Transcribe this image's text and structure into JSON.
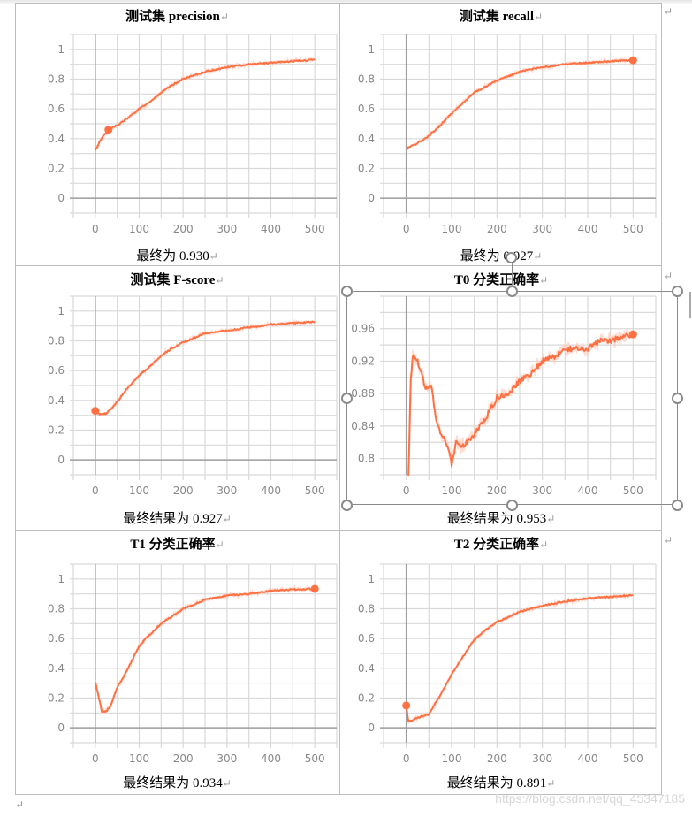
{
  "document": {
    "return_mark": "↵",
    "watermark": "https://blog.csdn.net/qq_45347185"
  },
  "cells": [
    {
      "title": "测试集 precision",
      "caption": "最终为 0.930"
    },
    {
      "title": "测试集 recall",
      "caption": "最终为 0.927"
    },
    {
      "title": "测试集 F-score",
      "caption": "最终结果为 0.927"
    },
    {
      "title": "T0 分类正确率",
      "caption": "最终结果为 0.953"
    },
    {
      "title": "T1 分类正确率",
      "caption": "最终结果为 0.934"
    },
    {
      "title": "T2 分类正确率",
      "caption": "最终结果为 0.891"
    }
  ],
  "colors": {
    "line": "#ff7043",
    "line_shadow": "#ffccbc",
    "grid": "#d9d9d9",
    "axis": "#9e9e9e",
    "border": "#bdbdbd"
  },
  "chart_data": [
    {
      "type": "line",
      "title": "测试集 precision",
      "xlabel": "",
      "ylabel": "",
      "xlim": [
        -50,
        550
      ],
      "ylim": [
        -0.1,
        1.1
      ],
      "xticks": [
        0,
        100,
        200,
        300,
        400,
        500
      ],
      "yticks": [
        0,
        0.2,
        0.4,
        0.6,
        0.8,
        1
      ],
      "grid": true,
      "x": [
        0,
        10,
        20,
        30,
        50,
        75,
        100,
        125,
        150,
        175,
        200,
        250,
        300,
        350,
        400,
        450,
        500
      ],
      "series": [
        {
          "name": "precision",
          "values": [
            0.32,
            0.38,
            0.43,
            0.46,
            0.49,
            0.54,
            0.6,
            0.65,
            0.71,
            0.76,
            0.8,
            0.85,
            0.88,
            0.9,
            0.91,
            0.92,
            0.93
          ]
        }
      ],
      "marker": {
        "x": 30,
        "y": 0.46
      },
      "final_value": 0.93
    },
    {
      "type": "line",
      "title": "测试集 recall",
      "xlim": [
        -50,
        550
      ],
      "ylim": [
        -0.1,
        1.1
      ],
      "xticks": [
        0,
        100,
        200,
        300,
        400,
        500
      ],
      "yticks": [
        0,
        0.2,
        0.4,
        0.6,
        0.8,
        1
      ],
      "grid": true,
      "x": [
        0,
        10,
        25,
        50,
        75,
        100,
        125,
        150,
        175,
        200,
        250,
        300,
        350,
        400,
        450,
        500
      ],
      "series": [
        {
          "name": "recall",
          "values": [
            0.33,
            0.35,
            0.37,
            0.42,
            0.49,
            0.57,
            0.64,
            0.71,
            0.75,
            0.79,
            0.85,
            0.88,
            0.9,
            0.91,
            0.92,
            0.927
          ]
        }
      ],
      "marker": {
        "x": 500,
        "y": 0.927
      },
      "final_value": 0.927
    },
    {
      "type": "line",
      "title": "测试集 F-score",
      "xlim": [
        -50,
        550
      ],
      "ylim": [
        -0.1,
        1.1
      ],
      "xticks": [
        0,
        100,
        200,
        300,
        400,
        500
      ],
      "yticks": [
        0,
        0.2,
        0.4,
        0.6,
        0.8,
        1
      ],
      "grid": true,
      "x": [
        0,
        10,
        25,
        50,
        75,
        100,
        125,
        150,
        175,
        200,
        250,
        300,
        350,
        400,
        450,
        500
      ],
      "series": [
        {
          "name": "F-score",
          "values": [
            0.33,
            0.31,
            0.31,
            0.39,
            0.49,
            0.57,
            0.63,
            0.7,
            0.75,
            0.79,
            0.85,
            0.87,
            0.89,
            0.91,
            0.92,
            0.927
          ]
        }
      ],
      "marker": {
        "x": 0,
        "y": 0.33
      },
      "final_value": 0.927
    },
    {
      "type": "line",
      "title": "T0 分类正确率",
      "xlim": [
        -50,
        550
      ],
      "ylim": [
        0.78,
        1.0
      ],
      "xticks": [
        0,
        100,
        200,
        300,
        400,
        500
      ],
      "yticks": [
        0.8,
        0.84,
        0.88,
        0.92,
        0.96
      ],
      "grid": true,
      "x": [
        5,
        10,
        15,
        25,
        35,
        45,
        55,
        65,
        75,
        85,
        95,
        100,
        110,
        125,
        150,
        175,
        200,
        225,
        250,
        275,
        300,
        325,
        350,
        375,
        400,
        425,
        450,
        475,
        500
      ],
      "series": [
        {
          "name": "T0 accuracy",
          "values": [
            0.78,
            0.9,
            0.93,
            0.92,
            0.9,
            0.885,
            0.89,
            0.85,
            0.83,
            0.825,
            0.81,
            0.79,
            0.82,
            0.815,
            0.83,
            0.85,
            0.875,
            0.88,
            0.895,
            0.905,
            0.92,
            0.925,
            0.935,
            0.935,
            0.935,
            0.945,
            0.945,
            0.95,
            0.953
          ]
        }
      ],
      "marker": {
        "x": 500,
        "y": 0.953
      },
      "final_value": 0.953
    },
    {
      "type": "line",
      "title": "T1 分类正确率",
      "xlim": [
        -50,
        550
      ],
      "ylim": [
        -0.1,
        1.1
      ],
      "xticks": [
        0,
        100,
        200,
        300,
        400,
        500
      ],
      "yticks": [
        0,
        0.2,
        0.4,
        0.6,
        0.8,
        1
      ],
      "grid": true,
      "x": [
        0,
        10,
        15,
        25,
        35,
        50,
        75,
        100,
        125,
        150,
        175,
        200,
        250,
        300,
        350,
        400,
        450,
        500
      ],
      "series": [
        {
          "name": "T1 accuracy",
          "values": [
            0.31,
            0.18,
            0.11,
            0.11,
            0.15,
            0.27,
            0.4,
            0.55,
            0.63,
            0.7,
            0.75,
            0.8,
            0.86,
            0.89,
            0.9,
            0.92,
            0.93,
            0.934
          ]
        }
      ],
      "marker": {
        "x": 500,
        "y": 0.934
      },
      "final_value": 0.934
    },
    {
      "type": "line",
      "title": "T2 分类正确率",
      "xlim": [
        -50,
        550
      ],
      "ylim": [
        -0.1,
        1.1
      ],
      "xticks": [
        0,
        100,
        200,
        300,
        400,
        500
      ],
      "yticks": [
        0,
        0.2,
        0.4,
        0.6,
        0.8,
        1
      ],
      "grid": true,
      "x": [
        0,
        5,
        25,
        50,
        75,
        100,
        125,
        150,
        175,
        200,
        250,
        300,
        350,
        400,
        450,
        500
      ],
      "series": [
        {
          "name": "T2 accuracy",
          "values": [
            0.15,
            0.04,
            0.07,
            0.09,
            0.22,
            0.36,
            0.48,
            0.59,
            0.66,
            0.71,
            0.78,
            0.82,
            0.85,
            0.87,
            0.88,
            0.891
          ]
        }
      ],
      "marker": {
        "x": 0,
        "y": 0.15
      },
      "final_value": 0.891
    }
  ]
}
